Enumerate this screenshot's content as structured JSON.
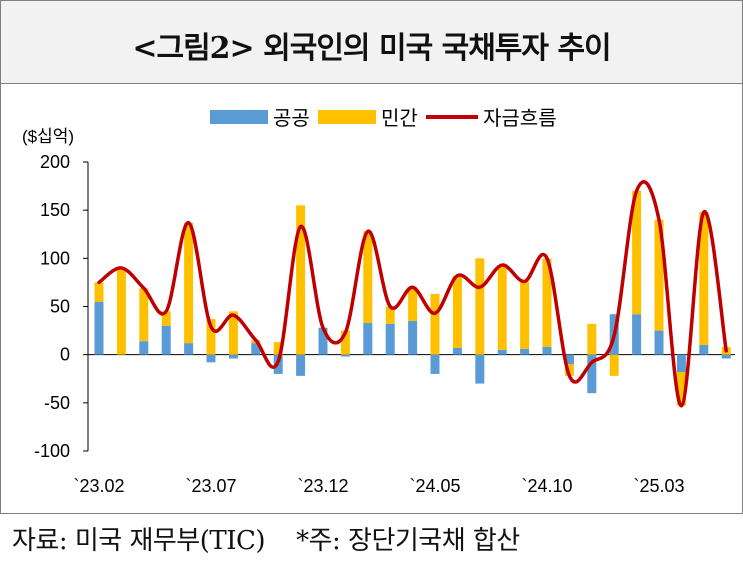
{
  "title": "<그림2> 외국인의 미국 국채투자 추이",
  "footer": "자료: 미국 재무부(TIC)    *주: 장단기국채 합산",
  "colors": {
    "public": "#5b9bd5",
    "private": "#ffc000",
    "flow": "#c00000",
    "axis": "#000000"
  },
  "chart_data": {
    "type": "bar",
    "unit_label": "($십억)",
    "ylim": [
      -100,
      200
    ],
    "yticks": [
      -100,
      -50,
      0,
      50,
      100,
      150,
      200
    ],
    "xtick_labels": [
      "`23.02",
      "`23.07",
      "`23.12",
      "`24.05",
      "`24.10",
      "`25.03"
    ],
    "xtick_index": [
      0,
      5,
      10,
      15,
      20,
      25
    ],
    "categories": [
      "2023.02",
      "2023.03",
      "2023.04",
      "2023.05",
      "2023.06",
      "2023.07",
      "2023.08",
      "2023.09",
      "2023.10",
      "2023.11",
      "2023.12",
      "2024.01",
      "2024.02",
      "2024.03",
      "2024.04",
      "2024.05",
      "2024.06",
      "2024.07",
      "2024.08",
      "2024.09",
      "2024.10",
      "2024.11",
      "2024.12",
      "2025.01",
      "2025.02",
      "2025.03",
      "2025.04",
      "2025.05",
      "2025.06",
      "2025.07"
    ],
    "stacked": true,
    "legend_position": "top",
    "series": [
      {
        "name": "공공",
        "type": "bar",
        "values": [
          55,
          0,
          14,
          30,
          12,
          -8,
          -4,
          12,
          -20,
          -22,
          28,
          -2,
          33,
          32,
          35,
          -20,
          7,
          -30,
          5,
          6,
          8,
          -10,
          -40,
          42,
          42,
          25,
          -18,
          10,
          -4,
          null
        ]
      },
      {
        "name": "민간",
        "type": "bar",
        "values": [
          20,
          90,
          55,
          15,
          125,
          37,
          45,
          3,
          13,
          155,
          0,
          25,
          95,
          18,
          35,
          63,
          75,
          100,
          88,
          70,
          92,
          -12,
          32,
          -22,
          128,
          115,
          -35,
          138,
          8,
          null
        ]
      },
      {
        "name": "자금흐름",
        "type": "line",
        "values": [
          75,
          90,
          69,
          45,
          137,
          29,
          41,
          15,
          -7,
          133,
          28,
          23,
          128,
          50,
          70,
          43,
          82,
          70,
          93,
          76,
          100,
          -22,
          -8,
          20,
          170,
          140,
          -53,
          148,
          4,
          null
        ]
      }
    ]
  }
}
